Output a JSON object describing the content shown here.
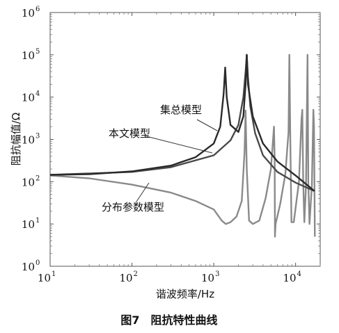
{
  "figure": {
    "caption": "图7　阻抗特性曲线"
  },
  "chart_data": {
    "type": "line",
    "xlabel": "谐波频率/Hz",
    "ylabel": "阻抗幅值/Ω",
    "xscale": "log",
    "yscale": "log",
    "xlim": [
      10,
      20000
    ],
    "ylim": [
      1,
      1000000
    ],
    "x_ticks": [
      {
        "base": "10",
        "exp": "1",
        "value": 10
      },
      {
        "base": "10",
        "exp": "2",
        "value": 100
      },
      {
        "base": "10",
        "exp": "3",
        "value": 1000
      },
      {
        "base": "10",
        "exp": "4",
        "value": 10000
      }
    ],
    "y_ticks": [
      {
        "base": "10",
        "exp": "0",
        "value": 1
      },
      {
        "base": "10",
        "exp": "1",
        "value": 10
      },
      {
        "base": "10",
        "exp": "2",
        "value": 100
      },
      {
        "base": "10",
        "exp": "3",
        "value": 1000
      },
      {
        "base": "10",
        "exp": "4",
        "value": 10000
      },
      {
        "base": "10",
        "exp": "5",
        "value": 100000
      },
      {
        "base": "10",
        "exp": "6",
        "value": 1000000
      }
    ],
    "grid": false,
    "series": [
      {
        "name": "本文模型",
        "color": "#2a2a2a",
        "points": [
          [
            10,
            145
          ],
          [
            30,
            150
          ],
          [
            100,
            175
          ],
          [
            300,
            240
          ],
          [
            600,
            380
          ],
          [
            1000,
            800
          ],
          [
            1200,
            2000
          ],
          [
            1320,
            12000
          ],
          [
            1380,
            50000
          ],
          [
            1440,
            10000
          ],
          [
            1600,
            2200
          ],
          [
            2000,
            1500
          ],
          [
            2300,
            3500
          ],
          [
            2450,
            20000
          ],
          [
            2530,
            100000
          ],
          [
            2620,
            20000
          ],
          [
            3000,
            3500
          ],
          [
            4000,
            800
          ],
          [
            6000,
            300
          ],
          [
            10000,
            140
          ],
          [
            17000,
            60
          ]
        ]
      },
      {
        "name": "集总模型",
        "color": "#4a4a4a",
        "points": [
          [
            10,
            145
          ],
          [
            100,
            170
          ],
          [
            300,
            220
          ],
          [
            1000,
            420
          ],
          [
            1600,
            950
          ],
          [
            2000,
            2200
          ],
          [
            2300,
            10000
          ],
          [
            2450,
            40000
          ],
          [
            2530,
            100000
          ],
          [
            2620,
            30000
          ],
          [
            2800,
            6000
          ],
          [
            3200,
            1400
          ],
          [
            4000,
            420
          ],
          [
            6000,
            170
          ],
          [
            10000,
            95
          ],
          [
            17000,
            60
          ]
        ]
      },
      {
        "name": "分布参数模型",
        "color": "#8a8a8a",
        "points": [
          [
            10,
            140
          ],
          [
            30,
            120
          ],
          [
            100,
            85
          ],
          [
            300,
            55
          ],
          [
            600,
            35
          ],
          [
            1000,
            22
          ],
          [
            1250,
            12
          ],
          [
            1400,
            10
          ],
          [
            1600,
            11
          ],
          [
            1900,
            15
          ],
          [
            2200,
            35
          ],
          [
            2380,
            500
          ],
          [
            2450,
            4800
          ],
          [
            2530,
            200
          ],
          [
            2700,
            12
          ],
          [
            3000,
            10
          ],
          [
            3600,
            12
          ],
          [
            4300,
            40
          ],
          [
            5000,
            200
          ],
          [
            5450,
            2000
          ],
          [
            5550,
            300
          ],
          [
            5600,
            5
          ],
          [
            5700,
            10
          ],
          [
            6500,
            30
          ],
          [
            7500,
            150
          ],
          [
            8200,
            1500
          ],
          [
            8400,
            100000
          ],
          [
            8600,
            1500
          ],
          [
            8900,
            11
          ],
          [
            9500,
            11
          ],
          [
            11000,
            100
          ],
          [
            11800,
            3000
          ],
          [
            12100,
            5000
          ],
          [
            12400,
            100
          ],
          [
            12800,
            11
          ],
          [
            13400,
            80
          ],
          [
            14000,
            100000
          ],
          [
            14300,
            100
          ],
          [
            14800,
            10
          ],
          [
            15800,
            80
          ],
          [
            16500,
            5000
          ],
          [
            16800,
            2000
          ],
          [
            17200,
            5
          ]
        ]
      }
    ],
    "annotations": [
      {
        "text": "集总模型",
        "x": 2000,
        "y": 2200
      },
      {
        "text": "本文模型",
        "x": 1100,
        "y": 1000
      },
      {
        "text": "分布参数模型",
        "x": 200,
        "y": 90
      }
    ]
  }
}
